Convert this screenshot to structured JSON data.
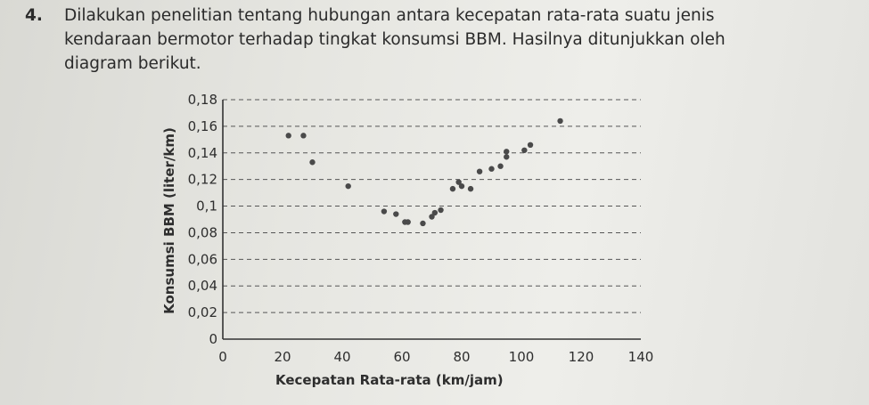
{
  "question": {
    "number": "4.",
    "lines": [
      "Dilakukan penelitian tentang hubungan antara kecepatan rata-rata suatu jenis",
      "kendaraan bermotor terhadap tingkat konsumsi BBM. Hasilnya ditunjukkan oleh",
      "diagram berikut."
    ]
  },
  "chart_data": {
    "type": "scatter",
    "xlabel": "Kecepatan Rata-rata (km/jam)",
    "ylabel": "Konsumsi BBM (liter/km)",
    "x_ticks": [
      "0",
      "20",
      "40",
      "60",
      "80",
      "100",
      "120",
      "140"
    ],
    "y_ticks": [
      "0",
      "0,02",
      "0,04",
      "0,06",
      "0,08",
      "0,1",
      "0,12",
      "0,14",
      "0,16",
      "0,18"
    ],
    "xlim": [
      0,
      140
    ],
    "ylim": [
      0,
      0.18
    ],
    "grid": "horizontal dashed",
    "points": [
      {
        "x": 22,
        "y": 0.153
      },
      {
        "x": 27,
        "y": 0.153
      },
      {
        "x": 30,
        "y": 0.133
      },
      {
        "x": 42,
        "y": 0.115
      },
      {
        "x": 54,
        "y": 0.096
      },
      {
        "x": 58,
        "y": 0.094
      },
      {
        "x": 61,
        "y": 0.088
      },
      {
        "x": 62,
        "y": 0.088
      },
      {
        "x": 67,
        "y": 0.087
      },
      {
        "x": 70,
        "y": 0.092
      },
      {
        "x": 71,
        "y": 0.095
      },
      {
        "x": 73,
        "y": 0.097
      },
      {
        "x": 77,
        "y": 0.113
      },
      {
        "x": 79,
        "y": 0.118
      },
      {
        "x": 80,
        "y": 0.115
      },
      {
        "x": 83,
        "y": 0.113
      },
      {
        "x": 86,
        "y": 0.126
      },
      {
        "x": 90,
        "y": 0.128
      },
      {
        "x": 93,
        "y": 0.13
      },
      {
        "x": 95,
        "y": 0.137
      },
      {
        "x": 95,
        "y": 0.141
      },
      {
        "x": 101,
        "y": 0.142
      },
      {
        "x": 103,
        "y": 0.146
      },
      {
        "x": 113,
        "y": 0.164
      }
    ],
    "colors": {
      "point": "#4a4a4a",
      "grid": "#555555",
      "axis": "#333333"
    }
  }
}
